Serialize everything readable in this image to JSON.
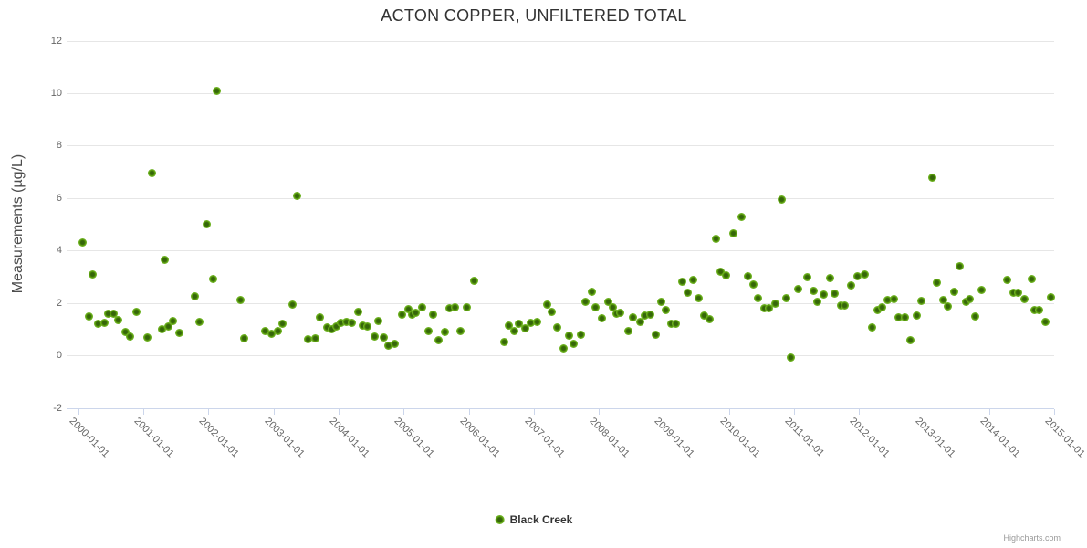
{
  "credits": {
    "text": "Highcharts.com"
  },
  "chart_data": {
    "type": "scatter",
    "title": "ACTON COPPER, UNFILTERED TOTAL",
    "xlabel": "",
    "ylabel": "Measurements (µg/L)",
    "ylim": [
      -2,
      12
    ],
    "xlim": [
      1999.82,
      2015.2
    ],
    "yticks": [
      -2,
      0,
      2,
      4,
      6,
      8,
      10,
      12
    ],
    "xticks": [
      "2000-01-01",
      "2001-01-01",
      "2002-01-01",
      "2003-01-01",
      "2004-01-01",
      "2005-01-01",
      "2006-01-01",
      "2007-01-01",
      "2008-01-01",
      "2009-01-01",
      "2010-01-01",
      "2011-01-01",
      "2012-01-01",
      "2013-01-01",
      "2014-01-01",
      "2015-01-01"
    ],
    "grid": "horizontal",
    "legend_position": "bottom-center",
    "marker_color": "#6cb121",
    "series": [
      {
        "name": "Black Creek",
        "color": "#6cb121",
        "points": [
          [
            2000.07,
            4.3
          ],
          [
            2000.16,
            1.5
          ],
          [
            2000.22,
            3.1
          ],
          [
            2000.3,
            1.2
          ],
          [
            2000.41,
            1.25
          ],
          [
            2000.46,
            1.6
          ],
          [
            2000.54,
            1.6
          ],
          [
            2000.62,
            1.35
          ],
          [
            2000.72,
            0.9
          ],
          [
            2000.8,
            0.73
          ],
          [
            2000.9,
            1.65
          ],
          [
            2001.07,
            0.7
          ],
          [
            2001.13,
            6.95
          ],
          [
            2001.29,
            1.0
          ],
          [
            2001.33,
            3.65
          ],
          [
            2001.39,
            1.1
          ],
          [
            2001.45,
            1.3
          ],
          [
            2001.55,
            0.88
          ],
          [
            2001.79,
            2.25
          ],
          [
            2001.86,
            1.28
          ],
          [
            2001.97,
            5.0
          ],
          [
            2002.07,
            2.92
          ],
          [
            2002.13,
            10.1
          ],
          [
            2002.5,
            2.1
          ],
          [
            2002.55,
            0.66
          ],
          [
            2002.87,
            0.92
          ],
          [
            2002.97,
            0.83
          ],
          [
            2003.07,
            0.95
          ],
          [
            2003.14,
            1.21
          ],
          [
            2003.3,
            1.95
          ],
          [
            2003.37,
            6.1
          ],
          [
            2003.53,
            0.62
          ],
          [
            2003.64,
            0.64
          ],
          [
            2003.72,
            1.45
          ],
          [
            2003.82,
            1.07
          ],
          [
            2003.9,
            0.99
          ],
          [
            2003.96,
            1.1
          ],
          [
            2004.04,
            1.24
          ],
          [
            2004.12,
            1.28
          ],
          [
            2004.2,
            1.23
          ],
          [
            2004.3,
            1.65
          ],
          [
            2004.37,
            1.15
          ],
          [
            2004.44,
            1.1
          ],
          [
            2004.55,
            0.71
          ],
          [
            2004.61,
            1.32
          ],
          [
            2004.7,
            0.69
          ],
          [
            2004.76,
            0.38
          ],
          [
            2004.87,
            0.45
          ],
          [
            2004.97,
            1.56
          ],
          [
            2005.08,
            1.77
          ],
          [
            2005.13,
            1.56
          ],
          [
            2005.19,
            1.63
          ],
          [
            2005.29,
            1.85
          ],
          [
            2005.38,
            0.95
          ],
          [
            2005.45,
            1.56
          ],
          [
            2005.54,
            0.57
          ],
          [
            2005.63,
            0.9
          ],
          [
            2005.7,
            1.79
          ],
          [
            2005.79,
            1.85
          ],
          [
            2005.88,
            0.92
          ],
          [
            2005.97,
            1.84
          ],
          [
            2006.08,
            2.85
          ],
          [
            2006.54,
            0.5
          ],
          [
            2006.62,
            1.13
          ],
          [
            2006.7,
            0.92
          ],
          [
            2006.77,
            1.21
          ],
          [
            2006.87,
            1.04
          ],
          [
            2006.95,
            1.24
          ],
          [
            2007.05,
            1.27
          ],
          [
            2007.21,
            1.95
          ],
          [
            2007.27,
            1.66
          ],
          [
            2007.36,
            1.08
          ],
          [
            2007.46,
            0.27
          ],
          [
            2007.54,
            0.77
          ],
          [
            2007.61,
            0.44
          ],
          [
            2007.72,
            0.81
          ],
          [
            2007.79,
            2.04
          ],
          [
            2007.89,
            2.44
          ],
          [
            2007.95,
            1.83
          ],
          [
            2008.05,
            1.43
          ],
          [
            2008.15,
            2.04
          ],
          [
            2008.21,
            1.85
          ],
          [
            2008.27,
            1.6
          ],
          [
            2008.33,
            1.62
          ],
          [
            2008.45,
            0.92
          ],
          [
            2008.52,
            1.46
          ],
          [
            2008.63,
            1.27
          ],
          [
            2008.7,
            1.54
          ],
          [
            2008.79,
            1.56
          ],
          [
            2008.87,
            0.81
          ],
          [
            2008.96,
            2.04
          ],
          [
            2009.03,
            1.75
          ],
          [
            2009.12,
            1.21
          ],
          [
            2009.19,
            1.21
          ],
          [
            2009.28,
            2.8
          ],
          [
            2009.37,
            2.41
          ],
          [
            2009.45,
            2.87
          ],
          [
            2009.53,
            2.17
          ],
          [
            2009.62,
            1.53
          ],
          [
            2009.7,
            1.4
          ],
          [
            2009.8,
            4.45
          ],
          [
            2009.87,
            3.2
          ],
          [
            2009.95,
            3.04
          ],
          [
            2010.07,
            4.67
          ],
          [
            2010.2,
            5.3
          ],
          [
            2010.29,
            3.01
          ],
          [
            2010.37,
            2.72
          ],
          [
            2010.44,
            2.2
          ],
          [
            2010.54,
            1.79
          ],
          [
            2010.61,
            1.82
          ],
          [
            2010.71,
            1.96
          ],
          [
            2010.81,
            5.95
          ],
          [
            2010.88,
            2.2
          ],
          [
            2010.95,
            -0.08
          ],
          [
            2011.07,
            2.54
          ],
          [
            2011.2,
            2.99
          ],
          [
            2011.3,
            2.46
          ],
          [
            2011.36,
            2.03
          ],
          [
            2011.45,
            2.32
          ],
          [
            2011.56,
            2.96
          ],
          [
            2011.63,
            2.37
          ],
          [
            2011.72,
            1.91
          ],
          [
            2011.78,
            1.91
          ],
          [
            2011.87,
            2.66
          ],
          [
            2011.97,
            3.01
          ],
          [
            2012.08,
            3.08
          ],
          [
            2012.2,
            1.07
          ],
          [
            2012.28,
            1.73
          ],
          [
            2012.35,
            1.85
          ],
          [
            2012.44,
            2.11
          ],
          [
            2012.54,
            2.14
          ],
          [
            2012.6,
            1.45
          ],
          [
            2012.71,
            1.45
          ],
          [
            2012.79,
            0.58
          ],
          [
            2012.88,
            1.53
          ],
          [
            2012.95,
            2.08
          ],
          [
            2013.13,
            6.78
          ],
          [
            2013.2,
            2.78
          ],
          [
            2013.3,
            2.11
          ],
          [
            2013.37,
            1.88
          ],
          [
            2013.46,
            2.43
          ],
          [
            2013.54,
            3.4
          ],
          [
            2013.65,
            2.03
          ],
          [
            2013.7,
            2.15
          ],
          [
            2013.79,
            1.5
          ],
          [
            2013.88,
            2.5
          ],
          [
            2014.27,
            2.87
          ],
          [
            2014.38,
            2.4
          ],
          [
            2014.45,
            2.4
          ],
          [
            2014.54,
            2.15
          ],
          [
            2014.65,
            2.9
          ],
          [
            2014.7,
            1.74
          ],
          [
            2014.77,
            1.74
          ],
          [
            2014.87,
            1.28
          ],
          [
            2014.95,
            2.21
          ]
        ]
      }
    ]
  }
}
